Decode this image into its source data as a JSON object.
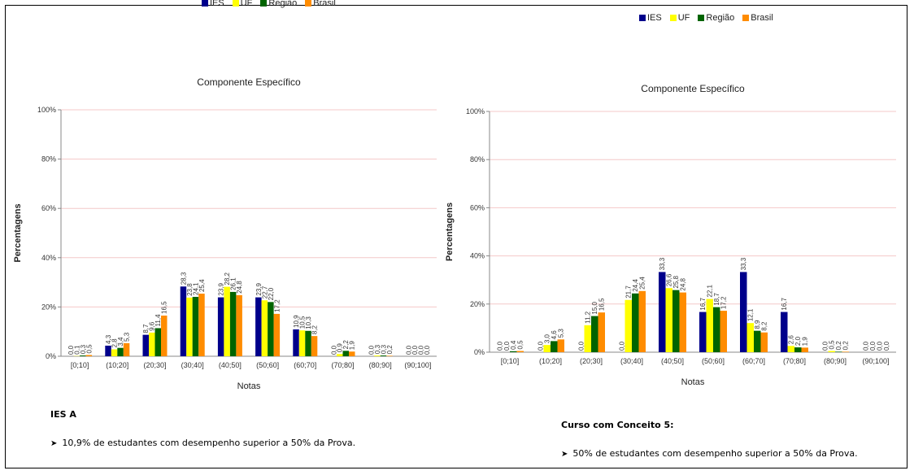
{
  "legend": {
    "items": [
      {
        "label": "IES",
        "color": "#00008B"
      },
      {
        "label": "UF",
        "color": "#FFFF00"
      },
      {
        "label": "Região",
        "color": "#006400"
      },
      {
        "label": "Brasil",
        "color": "#FF8C00"
      }
    ]
  },
  "chart_data": [
    {
      "type": "bar",
      "title": "Componente Específico",
      "xlabel": "Notas",
      "ylabel": "Percentagens",
      "ylim": [
        0,
        100
      ],
      "yticks": [
        "0%",
        "20%",
        "40%",
        "60%",
        "80%",
        "100%"
      ],
      "categories": [
        "[0;10]",
        "(10;20]",
        "(20;30]",
        "(30;40]",
        "(40;50]",
        "(50;60]",
        "(60;70]",
        "(70;80]",
        "(80;90]",
        "(90;100]"
      ],
      "series": [
        {
          "name": "IES",
          "color": "#00008B",
          "values": [
            0.0,
            4.3,
            8.7,
            28.3,
            23.9,
            23.9,
            10.9,
            0.0,
            0.0,
            0.0
          ],
          "labels": [
            "0,0",
            "4,3",
            "8,7",
            "28,3",
            "23,9",
            "23,9",
            "10,9",
            "0,0",
            "0,0",
            "0,0"
          ]
        },
        {
          "name": "UF",
          "color": "#FFFF00",
          "values": [
            0.1,
            2.8,
            9.6,
            23.8,
            28.2,
            22.7,
            10.5,
            0.9,
            0.3,
            0.0
          ],
          "labels": [
            "0,1",
            "2,8",
            "9,6",
            "23,8",
            "28,2",
            "22,7",
            "10,5",
            "0,9",
            "0,3",
            "0,0"
          ]
        },
        {
          "name": "Região",
          "color": "#006400",
          "values": [
            0.3,
            3.4,
            11.4,
            24.1,
            26.1,
            22.0,
            10.3,
            2.2,
            0.3,
            0.0
          ],
          "labels": [
            "0,3",
            "3,4",
            "11,4",
            "24,1",
            "26,1",
            "22,0",
            "10,3",
            "2,2",
            "0,3",
            "0,0"
          ]
        },
        {
          "name": "Brasil",
          "color": "#FF8C00",
          "values": [
            0.5,
            5.3,
            16.5,
            25.4,
            24.8,
            17.2,
            8.2,
            1.9,
            0.2,
            0.0
          ],
          "labels": [
            "0,5",
            "5,3",
            "16,5",
            "25,4",
            "24,8",
            "17,2",
            "8,2",
            "1,9",
            "0,2",
            "0,0"
          ]
        }
      ]
    },
    {
      "type": "bar",
      "title": "Componente Específico",
      "xlabel": "Notas",
      "ylabel": "Percentagens",
      "ylim": [
        0,
        100
      ],
      "yticks": [
        "0%",
        "20%",
        "40%",
        "60%",
        "80%",
        "100%"
      ],
      "categories": [
        "[0;10]",
        "(10;20]",
        "(20;30]",
        "(30;40]",
        "(40;50]",
        "(50;60]",
        "(60;70]",
        "(70;80]",
        "(80;90]",
        "(90;100]"
      ],
      "series": [
        {
          "name": "IES",
          "color": "#00008B",
          "values": [
            0.0,
            0.0,
            0.0,
            0.0,
            33.3,
            16.7,
            33.3,
            16.7,
            0.0,
            0.0
          ],
          "labels": [
            "0,0",
            "0,0",
            "0,0",
            "0,0",
            "33,3",
            "16,7",
            "33,3",
            "16,7",
            "0,0",
            "0,0"
          ]
        },
        {
          "name": "UF",
          "color": "#FFFF00",
          "values": [
            0.0,
            3.0,
            11.2,
            21.7,
            26.6,
            22.1,
            12.1,
            2.6,
            0.5,
            0.0
          ],
          "labels": [
            "0,0",
            "3,0",
            "11,2",
            "21,7",
            "26,6",
            "22,1",
            "12,1",
            "2,6",
            "0,5",
            "0,0"
          ]
        },
        {
          "name": "Região",
          "color": "#006400",
          "values": [
            0.4,
            4.6,
            15.0,
            24.4,
            25.8,
            18.7,
            8.9,
            2.0,
            0.2,
            0.0
          ],
          "labels": [
            "0,4",
            "4,6",
            "15,0",
            "24,4",
            "25,8",
            "18,7",
            "8,9",
            "2,0",
            "0,2",
            "0,0"
          ]
        },
        {
          "name": "Brasil",
          "color": "#FF8C00",
          "values": [
            0.5,
            5.3,
            16.5,
            25.4,
            24.8,
            17.2,
            8.2,
            1.9,
            0.2,
            0.0
          ],
          "labels": [
            "0,5",
            "5,3",
            "16,5",
            "25,4",
            "24,8",
            "17,2",
            "8,2",
            "1,9",
            "0,2",
            "0,0"
          ]
        }
      ]
    }
  ],
  "notes": {
    "left": {
      "title": "IES A",
      "bullet": "10,9% de estudantes com desempenho superior a 50% da Prova."
    },
    "right": {
      "title": "Curso com Conceito 5:",
      "bullet": "50% de estudantes com desempenho superior a 50% da Prova."
    }
  }
}
